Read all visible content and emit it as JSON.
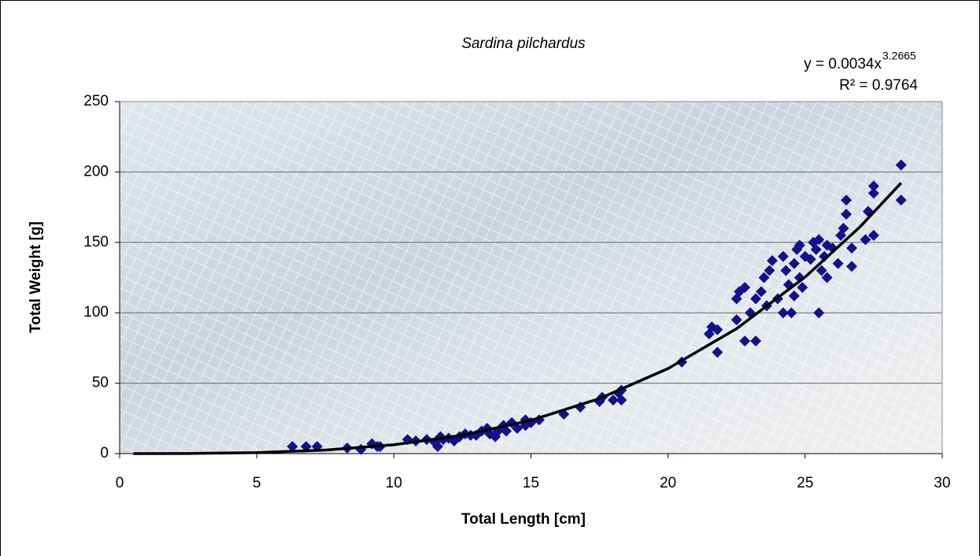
{
  "chart_data": {
    "type": "scatter",
    "title": "Sardina pilchardus",
    "x_label": "Total Length [cm]",
    "y_label": "Total Weight [g]",
    "trendline_equation": {
      "text": "y = 0.0034x",
      "exponent": "3.2665"
    },
    "r_squared": "R² = 0.9764",
    "xlim": [
      0,
      30
    ],
    "ylim": [
      0,
      250
    ],
    "xticks": [
      0,
      5,
      10,
      15,
      20,
      25,
      30
    ],
    "yticks": [
      0,
      50,
      100,
      150,
      200,
      250
    ],
    "grid": true,
    "series": [
      {
        "color": "#12128a",
        "x": [
          6.3,
          6.8,
          7.2,
          8.3,
          8.8,
          9.2,
          9.4,
          9.5,
          10.5,
          10.8,
          11.2,
          11.5,
          11.6,
          11.7,
          11.8,
          12,
          12.2,
          12.4,
          12.6,
          12.8,
          13,
          13.2,
          13.4,
          13.5,
          13.7,
          13.8,
          14,
          14.1,
          14.3,
          14.5,
          14.8,
          14.8,
          15,
          15.3,
          16.2,
          16.8,
          17.5,
          17.6,
          18,
          18.2,
          18.3,
          18.3,
          20.5,
          21.5,
          21.6,
          21.8,
          21.8,
          22.5,
          22.5,
          22.6,
          22.8,
          22.8,
          23,
          23.2,
          23.2,
          23.4,
          23.5,
          23.6,
          23.7,
          23.8,
          24,
          24.2,
          24.2,
          24.3,
          24.4,
          24.5,
          24.6,
          24.6,
          24.7,
          24.8,
          24.8,
          24.9,
          25,
          25.2,
          25.3,
          25.4,
          25.5,
          25.5,
          25.6,
          25.7,
          25.8,
          25.8,
          26,
          26.2,
          26.3,
          26.4,
          26.5,
          26.5,
          26.7,
          26.7,
          27.2,
          27.3,
          27.5,
          27.5,
          27.5,
          28.5,
          28.5
        ],
        "values": [
          5,
          5,
          5,
          4,
          3,
          7,
          5,
          5,
          10,
          9,
          10,
          8,
          5,
          12,
          10,
          11,
          9,
          12,
          14,
          13,
          13,
          16,
          18,
          14,
          12,
          16,
          20,
          16,
          22,
          18,
          20,
          24,
          22,
          24,
          28,
          33,
          37,
          40,
          38,
          43,
          38,
          45,
          65,
          85,
          90,
          72,
          88,
          95,
          110,
          115,
          80,
          118,
          100,
          80,
          110,
          115,
          125,
          105,
          130,
          137,
          110,
          140,
          100,
          130,
          120,
          100,
          135,
          112,
          145,
          125,
          148,
          118,
          140,
          138,
          150,
          145,
          100,
          152,
          130,
          140,
          148,
          125,
          146,
          135,
          155,
          160,
          170,
          180,
          133,
          146,
          152,
          172,
          155,
          185,
          190,
          205,
          180
        ]
      }
    ],
    "trendline": {
      "color": "#000000",
      "x": [
        0.5,
        2.5,
        5,
        7.5,
        10,
        12.5,
        15,
        17.5,
        20,
        22.5,
        25,
        27,
        28.5
      ],
      "values": [
        0,
        0.1,
        0.7,
        2.5,
        6.3,
        13,
        23.6,
        39.1,
        60.4,
        88.7,
        125.4,
        161,
        192.2
      ]
    }
  }
}
